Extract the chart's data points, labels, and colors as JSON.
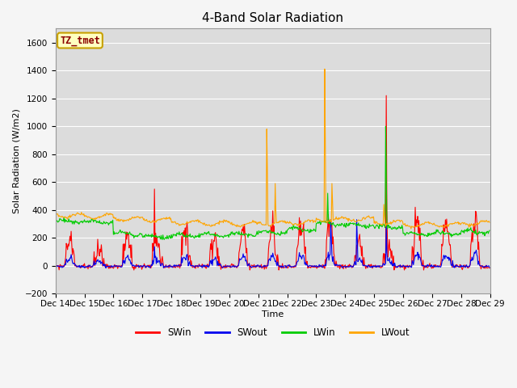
{
  "title": "4-Band Solar Radiation",
  "xlabel": "Time",
  "ylabel": "Solar Radiation (W/m2)",
  "ylim": [
    -200,
    1700
  ],
  "yticks": [
    -200,
    0,
    200,
    400,
    600,
    800,
    1000,
    1200,
    1400,
    1600
  ],
  "annotation_text": "TZ_tmet",
  "annotation_color": "#8B0000",
  "annotation_bg": "#FFFFC0",
  "annotation_border": "#C8A000",
  "colors": {
    "SWin": "#FF0000",
    "SWout": "#0000EE",
    "LWin": "#00CC00",
    "LWout": "#FFA500"
  },
  "line_width": 0.8,
  "plot_bg": "#DCDCDC",
  "fig_bg": "#F5F5F5",
  "grid_color": "#FFFFFF",
  "title_fontsize": 11,
  "label_fontsize": 8,
  "tick_fontsize": 7.5
}
